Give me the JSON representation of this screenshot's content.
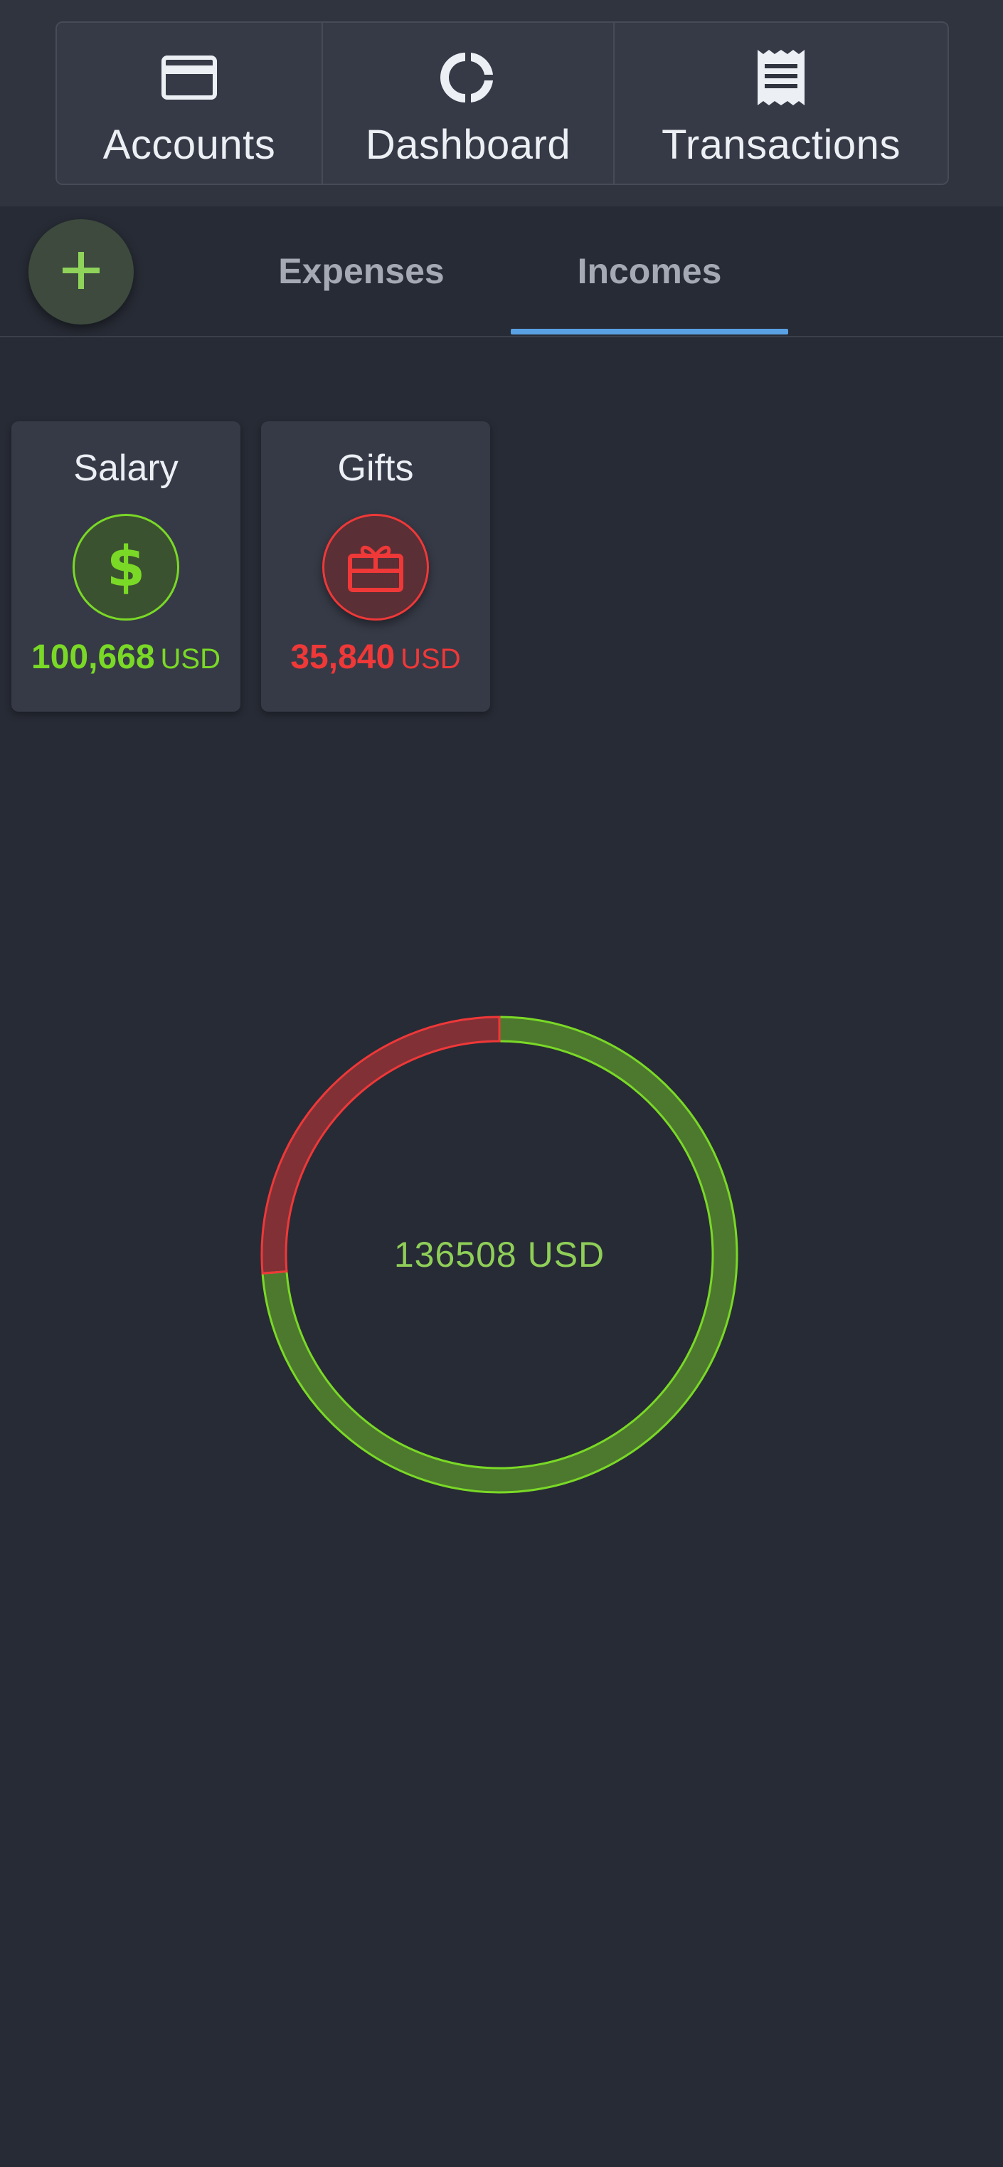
{
  "nav": {
    "accounts": {
      "label": "Accounts",
      "icon": "credit-card-icon"
    },
    "dashboard": {
      "label": "Dashboard",
      "icon": "donut-chart-icon"
    },
    "transactions": {
      "label": "Transactions",
      "icon": "receipt-icon"
    }
  },
  "fab": {
    "icon": "plus-icon",
    "color": "#8fd35a"
  },
  "tabs": [
    {
      "label": "Expenses",
      "active": false
    },
    {
      "label": "Incomes",
      "active": true
    }
  ],
  "categories": [
    {
      "name": "Salary",
      "icon": "dollar-icon",
      "amount": "100,668",
      "currency": "USD",
      "value": 100668,
      "color": "#7ad926"
    },
    {
      "name": "Gifts",
      "icon": "gift-icon",
      "amount": "35,840",
      "currency": "USD",
      "value": 35840,
      "color": "#ef3838"
    }
  ],
  "total": {
    "label": "136508 USD"
  },
  "colors": {
    "background": "#272b35",
    "topbar": "#30343f",
    "tab_indicator": "#5aa1e3",
    "income_green": "#7ad926",
    "gift_red": "#ef3838"
  }
}
